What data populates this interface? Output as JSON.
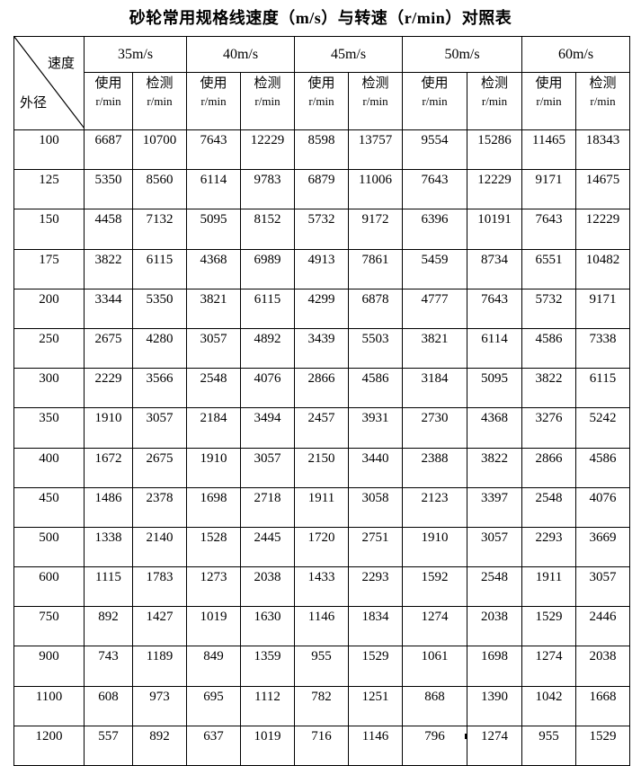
{
  "title": "砂轮常用规格线速度（m/s）与转速（r/min）对照表",
  "corner": {
    "speed_label": "速度",
    "diameter_label": "外径"
  },
  "speeds": [
    "35m/s",
    "40m/s",
    "45m/s",
    "50m/s",
    "60m/s"
  ],
  "sub_headers": [
    {
      "label": "使用",
      "unit": "r/min"
    },
    {
      "label": "检测",
      "unit": "r/min"
    }
  ],
  "rows": [
    {
      "diameter": "100",
      "values": [
        "6687",
        "10700",
        "7643",
        "12229",
        "8598",
        "13757",
        "9554",
        "15286",
        "11465",
        "18343"
      ]
    },
    {
      "diameter": "125",
      "values": [
        "5350",
        "8560",
        "6114",
        "9783",
        "6879",
        "11006",
        "7643",
        "12229",
        "9171",
        "14675"
      ]
    },
    {
      "diameter": "150",
      "values": [
        "4458",
        "7132",
        "5095",
        "8152",
        "5732",
        "9172",
        "6396",
        "10191",
        "7643",
        "12229"
      ]
    },
    {
      "diameter": "175",
      "values": [
        "3822",
        "6115",
        "4368",
        "6989",
        "4913",
        "7861",
        "5459",
        "8734",
        "6551",
        "10482"
      ]
    },
    {
      "diameter": "200",
      "values": [
        "3344",
        "5350",
        "3821",
        "6115",
        "4299",
        "6878",
        "4777",
        "7643",
        "5732",
        "9171"
      ]
    },
    {
      "diameter": "250",
      "values": [
        "2675",
        "4280",
        "3057",
        "4892",
        "3439",
        "5503",
        "3821",
        "6114",
        "4586",
        "7338"
      ]
    },
    {
      "diameter": "300",
      "values": [
        "2229",
        "3566",
        "2548",
        "4076",
        "2866",
        "4586",
        "3184",
        "5095",
        "3822",
        "6115"
      ]
    },
    {
      "diameter": "350",
      "values": [
        "1910",
        "3057",
        "2184",
        "3494",
        "2457",
        "3931",
        "2730",
        "4368",
        "3276",
        "5242"
      ]
    },
    {
      "diameter": "400",
      "values": [
        "1672",
        "2675",
        "1910",
        "3057",
        "2150",
        "3440",
        "2388",
        "3822",
        "2866",
        "4586"
      ]
    },
    {
      "diameter": "450",
      "values": [
        "1486",
        "2378",
        "1698",
        "2718",
        "1911",
        "3058",
        "2123",
        "3397",
        "2548",
        "4076"
      ]
    },
    {
      "diameter": "500",
      "values": [
        "1338",
        "2140",
        "1528",
        "2445",
        "1720",
        "2751",
        "1910",
        "3057",
        "2293",
        "3669"
      ]
    },
    {
      "diameter": "600",
      "values": [
        "1115",
        "1783",
        "1273",
        "2038",
        "1433",
        "2293",
        "1592",
        "2548",
        "1911",
        "3057"
      ]
    },
    {
      "diameter": "750",
      "values": [
        "892",
        "1427",
        "1019",
        "1630",
        "1146",
        "1834",
        "1274",
        "2038",
        "1529",
        "2446"
      ]
    },
    {
      "diameter": "900",
      "values": [
        "743",
        "1189",
        "849",
        "1359",
        "955",
        "1529",
        "1061",
        "1698",
        "1274",
        "2038"
      ]
    },
    {
      "diameter": "1100",
      "values": [
        "608",
        "973",
        "695",
        "1112",
        "782",
        "1251",
        "868",
        "1390",
        "1042",
        "1668"
      ]
    },
    {
      "diameter": "1200",
      "values": [
        "557",
        "892",
        "637",
        "1019",
        "716",
        "1146",
        "796",
        "1274",
        "955",
        "1529"
      ]
    }
  ]
}
